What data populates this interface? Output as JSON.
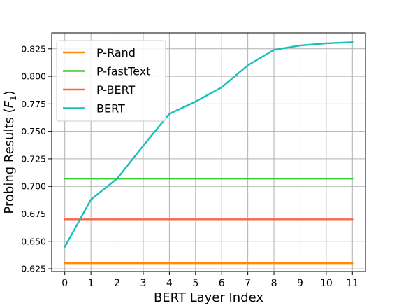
{
  "chart_data": {
    "type": "line",
    "title": "",
    "xlabel": "BERT Layer Index",
    "ylabel": "Probing Results (F₁)",
    "ylabel_parts": {
      "text": "Probing Results (",
      "sym": "F",
      "sub": "1",
      "close": ")"
    },
    "x": [
      0,
      1,
      2,
      3,
      4,
      5,
      6,
      7,
      8,
      9,
      10,
      11
    ],
    "xlim": [
      -0.5,
      11.5
    ],
    "ylim": [
      0.6225,
      0.8395
    ],
    "yticks": [
      "0.625",
      "0.650",
      "0.675",
      "0.700",
      "0.725",
      "0.750",
      "0.775",
      "0.800",
      "0.825"
    ],
    "grid": true,
    "legend_position": "top-left",
    "series": [
      {
        "name": "P-Rand",
        "color": "#ff8c00",
        "values": [
          0.63,
          0.63,
          0.63,
          0.63,
          0.63,
          0.63,
          0.63,
          0.63,
          0.63,
          0.63,
          0.63,
          0.63
        ]
      },
      {
        "name": "P-fastText",
        "color": "#33cc33",
        "values": [
          0.707,
          0.707,
          0.707,
          0.707,
          0.707,
          0.707,
          0.707,
          0.707,
          0.707,
          0.707,
          0.707,
          0.707
        ]
      },
      {
        "name": "P-BERT",
        "color": "#ff6347",
        "values": [
          0.67,
          0.67,
          0.67,
          0.67,
          0.67,
          0.67,
          0.67,
          0.67,
          0.67,
          0.67,
          0.67,
          0.67
        ]
      },
      {
        "name": "BERT",
        "color": "#17bebb",
        "values": [
          0.645,
          0.688,
          0.707,
          0.737,
          0.766,
          0.777,
          0.79,
          0.81,
          0.824,
          0.828,
          0.83,
          0.831
        ]
      }
    ]
  }
}
